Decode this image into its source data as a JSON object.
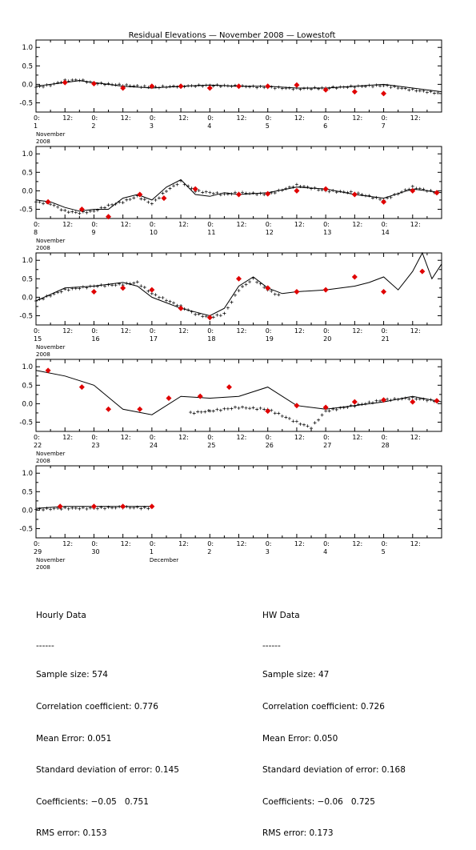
{
  "chart_data": {
    "type": "line",
    "title": "Residual Elevations — November 2008 — Lowestoft",
    "ylim": [
      -0.75,
      1.2
    ],
    "yticks": [
      "1.0",
      "0.5",
      "0.0",
      "-0.5"
    ],
    "grid": false,
    "legend": "none",
    "x_units": "hour of day, 0 to 168 per panel",
    "colors": {
      "line": "#000000",
      "cross": "#000000",
      "hw_marker": "#e00000"
    },
    "panels": [
      {
        "day_labels": [
          "1",
          "2",
          "3",
          "4",
          "5",
          "6",
          "7"
        ],
        "month_label": "November",
        "year_label": "2008",
        "extra_month_label": "",
        "extra_month_day": 0,
        "predicted": [
          [
            0,
            -0.05
          ],
          [
            6,
            0
          ],
          [
            12,
            0.05
          ],
          [
            18,
            0.1
          ],
          [
            24,
            0.05
          ],
          [
            36,
            -0.05
          ],
          [
            48,
            -0.1
          ],
          [
            60,
            -0.05
          ],
          [
            72,
            -0.02
          ],
          [
            84,
            -0.05
          ],
          [
            96,
            -0.05
          ],
          [
            108,
            -0.1
          ],
          [
            120,
            -0.1
          ],
          [
            132,
            -0.05
          ],
          [
            144,
            0.0
          ],
          [
            156,
            -0.1
          ],
          [
            168,
            -0.2
          ]
        ],
        "observed": [
          [
            0,
            -0.08
          ],
          [
            6,
            -0.02
          ],
          [
            12,
            0.1
          ],
          [
            18,
            0.12
          ],
          [
            24,
            0.03
          ],
          [
            36,
            -0.02
          ],
          [
            48,
            -0.08
          ],
          [
            60,
            -0.05
          ],
          [
            72,
            -0.03
          ],
          [
            84,
            -0.05
          ],
          [
            96,
            -0.08
          ],
          [
            108,
            -0.12
          ],
          [
            120,
            -0.1
          ],
          [
            132,
            -0.06
          ],
          [
            144,
            -0.03
          ],
          [
            156,
            -0.15
          ],
          [
            168,
            -0.25
          ]
        ],
        "hw_points": [
          [
            12,
            0.05
          ],
          [
            24,
            0.02
          ],
          [
            36,
            -0.1
          ],
          [
            48,
            -0.05
          ],
          [
            60,
            -0.05
          ],
          [
            72,
            -0.1
          ],
          [
            84,
            -0.05
          ],
          [
            96,
            -0.05
          ],
          [
            108,
            -0.02
          ],
          [
            120,
            -0.15
          ],
          [
            132,
            -0.2
          ],
          [
            144,
            -0.25
          ]
        ]
      },
      {
        "day_labels": [
          "8",
          "9",
          "10",
          "11",
          "12",
          "13",
          "14"
        ],
        "month_label": "November",
        "year_label": "2008",
        "extra_month_label": "",
        "extra_month_day": 0,
        "predicted": [
          [
            0,
            -0.25
          ],
          [
            6,
            -0.3
          ],
          [
            12,
            -0.45
          ],
          [
            18,
            -0.55
          ],
          [
            24,
            -0.5
          ],
          [
            30,
            -0.5
          ],
          [
            36,
            -0.2
          ],
          [
            42,
            -0.1
          ],
          [
            48,
            -0.25
          ],
          [
            54,
            0.1
          ],
          [
            60,
            0.3
          ],
          [
            66,
            -0.1
          ],
          [
            72,
            -0.15
          ],
          [
            78,
            -0.05
          ],
          [
            84,
            -0.1
          ],
          [
            96,
            -0.05
          ],
          [
            108,
            0.1
          ],
          [
            120,
            0.05
          ],
          [
            132,
            -0.1
          ],
          [
            144,
            -0.2
          ],
          [
            156,
            0.05
          ],
          [
            168,
            -0.05
          ]
        ],
        "observed": [
          [
            0,
            -0.3
          ],
          [
            6,
            -0.35
          ],
          [
            12,
            -0.55
          ],
          [
            18,
            -0.6
          ],
          [
            24,
            -0.55
          ],
          [
            30,
            -0.4
          ],
          [
            36,
            -0.3
          ],
          [
            42,
            -0.15
          ],
          [
            48,
            -0.35
          ],
          [
            54,
            0.0
          ],
          [
            60,
            0.25
          ],
          [
            66,
            0.0
          ],
          [
            72,
            -0.05
          ],
          [
            78,
            -0.1
          ],
          [
            84,
            -0.05
          ],
          [
            96,
            -0.1
          ],
          [
            108,
            0.15
          ],
          [
            120,
            0.0
          ],
          [
            132,
            -0.05
          ],
          [
            144,
            -0.25
          ],
          [
            156,
            0.1
          ],
          [
            168,
            -0.08
          ]
        ],
        "hw_points": [
          [
            5,
            -0.3
          ],
          [
            19,
            -0.5
          ],
          [
            30,
            -0.7
          ],
          [
            43,
            -0.1
          ],
          [
            53,
            -0.2
          ],
          [
            66,
            0.05
          ],
          [
            84,
            -0.1
          ],
          [
            96,
            -0.08
          ],
          [
            108,
            0.0
          ],
          [
            120,
            0.05
          ],
          [
            132,
            -0.1
          ],
          [
            144,
            -0.3
          ],
          [
            156,
            0.0
          ],
          [
            166,
            -0.05
          ]
        ]
      },
      {
        "day_labels": [
          "15",
          "16",
          "17",
          "18",
          "19",
          "20",
          "21"
        ],
        "month_label": "November",
        "year_label": "2008",
        "extra_month_label": "",
        "extra_month_day": 0,
        "predicted": [
          [
            0,
            -0.1
          ],
          [
            12,
            0.25
          ],
          [
            24,
            0.3
          ],
          [
            36,
            0.4
          ],
          [
            42,
            0.3
          ],
          [
            48,
            0.0
          ],
          [
            60,
            -0.3
          ],
          [
            66,
            -0.4
          ],
          [
            72,
            -0.5
          ],
          [
            78,
            -0.3
          ],
          [
            84,
            0.3
          ],
          [
            90,
            0.55
          ],
          [
            96,
            0.25
          ],
          [
            102,
            0.1
          ],
          [
            108,
            0.15
          ],
          [
            120,
            0.2
          ],
          [
            132,
            0.3
          ],
          [
            138,
            0.4
          ],
          [
            144,
            0.55
          ],
          [
            150,
            0.2
          ],
          [
            156,
            0.7
          ],
          [
            160,
            1.2
          ],
          [
            164,
            0.5
          ],
          [
            168,
            0.9
          ]
        ],
        "observed": [
          [
            0,
            -0.1
          ],
          [
            12,
            0.2
          ],
          [
            24,
            0.3
          ],
          [
            36,
            0.35
          ],
          [
            42,
            0.4
          ],
          [
            48,
            0.1
          ],
          [
            60,
            -0.25
          ],
          [
            66,
            -0.45
          ],
          [
            72,
            -0.55
          ],
          [
            78,
            -0.45
          ],
          [
            84,
            0.2
          ],
          [
            90,
            0.5
          ],
          [
            96,
            0.2
          ],
          [
            102,
            0.0
          ]
        ],
        "hw_points": [
          [
            24,
            0.15
          ],
          [
            36,
            0.25
          ],
          [
            48,
            0.2
          ],
          [
            60,
            -0.3
          ],
          [
            72,
            -0.55
          ],
          [
            84,
            0.5
          ],
          [
            96,
            0.25
          ],
          [
            108,
            0.15
          ],
          [
            120,
            0.2
          ],
          [
            132,
            0.55
          ],
          [
            144,
            0.15
          ],
          [
            160,
            0.7
          ]
        ]
      },
      {
        "day_labels": [
          "22",
          "23",
          "24",
          "25",
          "26",
          "27",
          "28"
        ],
        "month_label": "November",
        "year_label": "2008",
        "extra_month_label": "",
        "extra_month_day": 0,
        "predicted": [
          [
            0,
            0.9
          ],
          [
            12,
            0.75
          ],
          [
            24,
            0.5
          ],
          [
            36,
            -0.15
          ],
          [
            48,
            -0.3
          ],
          [
            60,
            0.2
          ],
          [
            72,
            0.15
          ],
          [
            84,
            0.2
          ],
          [
            96,
            0.45
          ],
          [
            108,
            -0.05
          ],
          [
            120,
            -0.15
          ],
          [
            132,
            -0.05
          ],
          [
            144,
            0.05
          ],
          [
            156,
            0.2
          ],
          [
            168,
            0.05
          ]
        ],
        "observed": [
          [
            64,
            -0.25
          ],
          [
            72,
            -0.2
          ],
          [
            84,
            -0.1
          ],
          [
            96,
            -0.15
          ],
          [
            108,
            -0.5
          ],
          [
            114,
            -0.65
          ],
          [
            120,
            -0.2
          ],
          [
            132,
            -0.05
          ],
          [
            144,
            0.1
          ],
          [
            156,
            0.15
          ],
          [
            168,
            0.05
          ]
        ],
        "hw_points": [
          [
            5,
            0.9
          ],
          [
            19,
            0.45
          ],
          [
            30,
            -0.15
          ],
          [
            43,
            -0.15
          ],
          [
            55,
            0.15
          ],
          [
            68,
            0.2
          ],
          [
            80,
            0.45
          ],
          [
            96,
            -0.2
          ],
          [
            108,
            -0.05
          ],
          [
            120,
            -0.1
          ],
          [
            132,
            0.05
          ],
          [
            144,
            0.1
          ],
          [
            156,
            0.05
          ],
          [
            166,
            0.08
          ]
        ]
      },
      {
        "day_labels": [
          "29",
          "30",
          "1",
          "2",
          "3",
          "4",
          "5"
        ],
        "month_label": "November",
        "year_label": "2008",
        "extra_month_label": "December",
        "extra_month_day": 2,
        "predicted": [
          [
            0,
            0.05
          ],
          [
            12,
            0.1
          ],
          [
            24,
            0.1
          ],
          [
            36,
            0.1
          ],
          [
            48,
            0.1
          ]
        ],
        "observed": [
          [
            0,
            0.02
          ],
          [
            12,
            0.05
          ],
          [
            24,
            0.05
          ],
          [
            36,
            0.08
          ],
          [
            48,
            0.05
          ]
        ],
        "hw_points": [
          [
            10,
            0.1
          ],
          [
            24,
            0.1
          ],
          [
            36,
            0.1
          ],
          [
            48,
            0.1
          ]
        ]
      }
    ]
  },
  "hourly": {
    "heading": "Hourly Data",
    "underline": "------",
    "lines": [
      "Sample size: 574",
      "Correlation coefficient: 0.776",
      "Mean Error: 0.051",
      "Standard deviation of error: 0.145",
      "Coefficients: −0.05   0.751",
      "RMS error: 0.153"
    ]
  },
  "hw": {
    "heading": "HW Data",
    "underline": "------",
    "lines": [
      "Sample size: 47",
      "Correlation coefficient: 0.726",
      "Mean Error: 0.050",
      "Standard deviation of error: 0.168",
      "Coefficients: −0.06   0.725",
      "RMS error: 0.173"
    ]
  }
}
